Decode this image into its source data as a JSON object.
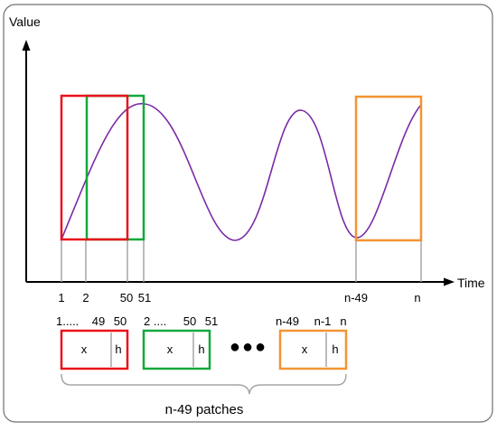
{
  "axes": {
    "y_label": "Value",
    "x_label": "Time"
  },
  "ticks": [
    "1",
    "2",
    "50",
    "51",
    "n-49",
    "n"
  ],
  "patches": [
    {
      "index_labels": [
        "1.....",
        "49",
        "50"
      ],
      "cells": [
        "x",
        "h"
      ],
      "color": "#e8121a"
    },
    {
      "index_labels": [
        "2 ....",
        "50",
        "51"
      ],
      "cells": [
        "x",
        "h"
      ],
      "color": "#13a83c"
    },
    {
      "index_labels": [
        "n-49",
        "n-1",
        "n"
      ],
      "cells": [
        "x",
        "h"
      ],
      "color": "#f39433"
    }
  ],
  "ellipsis": "●●●",
  "caption": "n-49 patches",
  "colors": {
    "curve": "#7a2aa6",
    "guide": "#a6a6a6",
    "frame": "#707070"
  }
}
